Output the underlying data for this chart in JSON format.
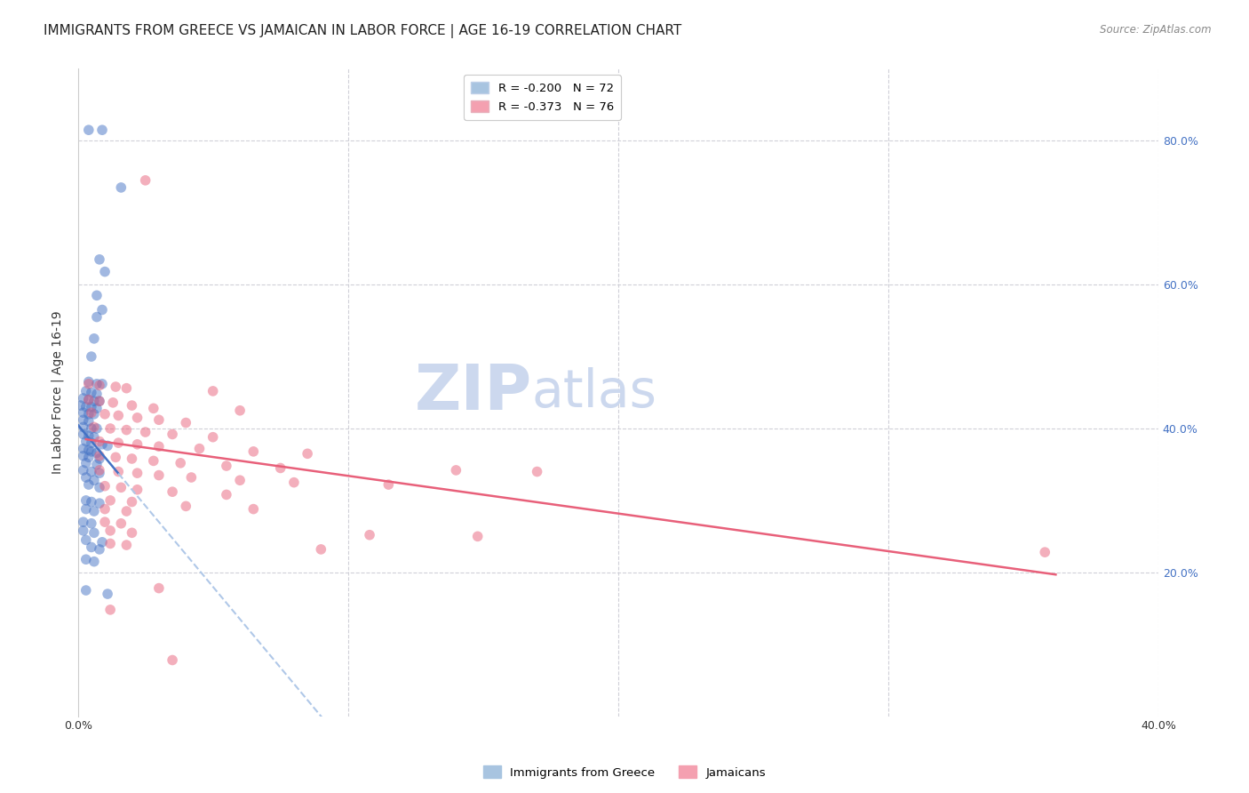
{
  "title": "IMMIGRANTS FROM GREECE VS JAMAICAN IN LABOR FORCE | AGE 16-19 CORRELATION CHART",
  "source": "Source: ZipAtlas.com",
  "ylabel": "In Labor Force | Age 16-19",
  "x_tick_labels": [
    "0.0%",
    "",
    "",
    "",
    "40.0%"
  ],
  "x_tick_values": [
    0.0,
    0.1,
    0.2,
    0.3,
    0.4
  ],
  "y_tick_labels_right": [
    "80.0%",
    "60.0%",
    "40.0%",
    "20.0%"
  ],
  "y_tick_values": [
    0.8,
    0.6,
    0.4,
    0.2
  ],
  "xlim": [
    0.0,
    0.4
  ],
  "ylim": [
    0.0,
    0.9
  ],
  "legend_label_blue": "Immigrants from Greece",
  "legend_label_pink": "Jamaicans",
  "greece_scatter": [
    [
      0.004,
      0.815
    ],
    [
      0.009,
      0.815
    ],
    [
      0.016,
      0.735
    ],
    [
      0.008,
      0.635
    ],
    [
      0.01,
      0.618
    ],
    [
      0.007,
      0.585
    ],
    [
      0.009,
      0.565
    ],
    [
      0.007,
      0.555
    ],
    [
      0.006,
      0.525
    ],
    [
      0.005,
      0.5
    ],
    [
      0.004,
      0.465
    ],
    [
      0.007,
      0.462
    ],
    [
      0.009,
      0.462
    ],
    [
      0.003,
      0.452
    ],
    [
      0.005,
      0.45
    ],
    [
      0.007,
      0.448
    ],
    [
      0.002,
      0.442
    ],
    [
      0.004,
      0.44
    ],
    [
      0.006,
      0.438
    ],
    [
      0.008,
      0.438
    ],
    [
      0.001,
      0.432
    ],
    [
      0.003,
      0.43
    ],
    [
      0.005,
      0.43
    ],
    [
      0.007,
      0.428
    ],
    [
      0.002,
      0.422
    ],
    [
      0.004,
      0.42
    ],
    [
      0.006,
      0.42
    ],
    [
      0.002,
      0.412
    ],
    [
      0.004,
      0.41
    ],
    [
      0.002,
      0.402
    ],
    [
      0.005,
      0.4
    ],
    [
      0.007,
      0.4
    ],
    [
      0.002,
      0.392
    ],
    [
      0.004,
      0.39
    ],
    [
      0.006,
      0.388
    ],
    [
      0.003,
      0.382
    ],
    [
      0.005,
      0.38
    ],
    [
      0.009,
      0.378
    ],
    [
      0.011,
      0.376
    ],
    [
      0.002,
      0.372
    ],
    [
      0.004,
      0.37
    ],
    [
      0.005,
      0.368
    ],
    [
      0.007,
      0.366
    ],
    [
      0.002,
      0.362
    ],
    [
      0.004,
      0.36
    ],
    [
      0.008,
      0.358
    ],
    [
      0.003,
      0.352
    ],
    [
      0.007,
      0.35
    ],
    [
      0.002,
      0.342
    ],
    [
      0.005,
      0.34
    ],
    [
      0.008,
      0.338
    ],
    [
      0.003,
      0.332
    ],
    [
      0.006,
      0.328
    ],
    [
      0.004,
      0.322
    ],
    [
      0.008,
      0.318
    ],
    [
      0.003,
      0.3
    ],
    [
      0.005,
      0.298
    ],
    [
      0.008,
      0.296
    ],
    [
      0.003,
      0.288
    ],
    [
      0.006,
      0.285
    ],
    [
      0.002,
      0.27
    ],
    [
      0.005,
      0.268
    ],
    [
      0.002,
      0.258
    ],
    [
      0.006,
      0.255
    ],
    [
      0.003,
      0.245
    ],
    [
      0.009,
      0.242
    ],
    [
      0.005,
      0.235
    ],
    [
      0.008,
      0.232
    ],
    [
      0.003,
      0.218
    ],
    [
      0.006,
      0.215
    ],
    [
      0.003,
      0.175
    ],
    [
      0.011,
      0.17
    ]
  ],
  "jamaica_scatter": [
    [
      0.025,
      0.745
    ],
    [
      0.004,
      0.462
    ],
    [
      0.008,
      0.46
    ],
    [
      0.014,
      0.458
    ],
    [
      0.018,
      0.456
    ],
    [
      0.05,
      0.452
    ],
    [
      0.004,
      0.44
    ],
    [
      0.008,
      0.438
    ],
    [
      0.013,
      0.436
    ],
    [
      0.02,
      0.432
    ],
    [
      0.028,
      0.428
    ],
    [
      0.06,
      0.425
    ],
    [
      0.005,
      0.422
    ],
    [
      0.01,
      0.42
    ],
    [
      0.015,
      0.418
    ],
    [
      0.022,
      0.415
    ],
    [
      0.03,
      0.412
    ],
    [
      0.04,
      0.408
    ],
    [
      0.006,
      0.402
    ],
    [
      0.012,
      0.4
    ],
    [
      0.018,
      0.398
    ],
    [
      0.025,
      0.395
    ],
    [
      0.035,
      0.392
    ],
    [
      0.05,
      0.388
    ],
    [
      0.008,
      0.382
    ],
    [
      0.015,
      0.38
    ],
    [
      0.022,
      0.378
    ],
    [
      0.03,
      0.375
    ],
    [
      0.045,
      0.372
    ],
    [
      0.065,
      0.368
    ],
    [
      0.085,
      0.365
    ],
    [
      0.008,
      0.362
    ],
    [
      0.014,
      0.36
    ],
    [
      0.02,
      0.358
    ],
    [
      0.028,
      0.355
    ],
    [
      0.038,
      0.352
    ],
    [
      0.055,
      0.348
    ],
    [
      0.075,
      0.345
    ],
    [
      0.14,
      0.342
    ],
    [
      0.17,
      0.34
    ],
    [
      0.008,
      0.342
    ],
    [
      0.015,
      0.34
    ],
    [
      0.022,
      0.338
    ],
    [
      0.03,
      0.335
    ],
    [
      0.042,
      0.332
    ],
    [
      0.06,
      0.328
    ],
    [
      0.08,
      0.325
    ],
    [
      0.115,
      0.322
    ],
    [
      0.01,
      0.32
    ],
    [
      0.016,
      0.318
    ],
    [
      0.022,
      0.315
    ],
    [
      0.035,
      0.312
    ],
    [
      0.055,
      0.308
    ],
    [
      0.012,
      0.3
    ],
    [
      0.02,
      0.298
    ],
    [
      0.04,
      0.292
    ],
    [
      0.065,
      0.288
    ],
    [
      0.01,
      0.288
    ],
    [
      0.018,
      0.285
    ],
    [
      0.01,
      0.27
    ],
    [
      0.016,
      0.268
    ],
    [
      0.012,
      0.258
    ],
    [
      0.02,
      0.255
    ],
    [
      0.108,
      0.252
    ],
    [
      0.148,
      0.25
    ],
    [
      0.012,
      0.24
    ],
    [
      0.018,
      0.238
    ],
    [
      0.09,
      0.232
    ],
    [
      0.358,
      0.228
    ],
    [
      0.03,
      0.178
    ],
    [
      0.012,
      0.148
    ],
    [
      0.035,
      0.078
    ]
  ],
  "greece_line_color": "#4472c4",
  "greece_dash_color": "#b0c8e8",
  "jamaica_line_color": "#e8607a",
  "scatter_alpha": 0.5,
  "scatter_size": 70,
  "bg_color": "#ffffff",
  "grid_color": "#d0d0d8",
  "title_fontsize": 11,
  "axis_label_fontsize": 10,
  "tick_fontsize": 9,
  "watermark_color": "#ccd8ee"
}
